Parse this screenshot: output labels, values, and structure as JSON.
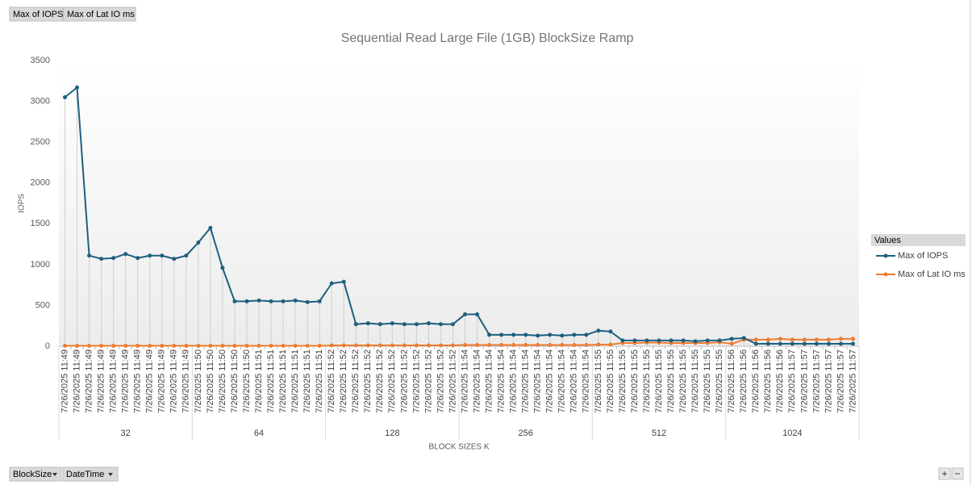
{
  "chart_data": {
    "type": "line",
    "title": "Sequential Read Large File (1GB) BlockSize Ramp",
    "y_axis_label": "IOPS",
    "x_axis_label": "BLOCK SIZES K",
    "value_buttons": [
      "Max of IOPS",
      "Max of Lat IO ms"
    ],
    "axis_buttons": [
      "BlockSize",
      "DateTime"
    ],
    "legend_title": "Values",
    "legend_position": "right",
    "drop_lines": true,
    "groups": [
      {
        "label": "32",
        "categories": [
          "7/26/2025 11:49",
          "7/26/2025 11:49",
          "7/26/2025 11:49",
          "7/26/2025 11:49",
          "7/26/2025 11:49",
          "7/26/2025 11:49",
          "7/26/2025 11:49",
          "7/26/2025 11:49",
          "7/26/2025 11:49",
          "7/26/2025 11:49",
          "7/26/2025 11:49"
        ]
      },
      {
        "label": "64",
        "categories": [
          "7/26/2025 11:50",
          "7/26/2025 11:50",
          "7/26/2025 11:50",
          "7/26/2025 11:50",
          "7/26/2025 11:50",
          "7/26/2025 11:51",
          "7/26/2025 11:51",
          "7/26/2025 11:51",
          "7/26/2025 11:51",
          "7/26/2025 11:51",
          "7/26/2025 11:51"
        ]
      },
      {
        "label": "128",
        "categories": [
          "7/26/2025 11:52",
          "7/26/2025 11:52",
          "7/26/2025 11:52",
          "7/26/2025 11:52",
          "7/26/2025 11:52",
          "7/26/2025 11:52",
          "7/26/2025 11:52",
          "7/26/2025 11:52",
          "7/26/2025 11:52",
          "7/26/2025 11:52",
          "7/26/2025 11:52"
        ]
      },
      {
        "label": "256",
        "categories": [
          "7/26/2025 11:54",
          "7/26/2025 11:54",
          "7/26/2025 11:54",
          "7/26/2025 11:54",
          "7/26/2025 11:54",
          "7/26/2025 11:54",
          "7/26/2025 11:54",
          "7/26/2025 11:54",
          "7/26/2025 11:54",
          "7/26/2025 11:54",
          "7/26/2025 11:54"
        ]
      },
      {
        "label": "512",
        "categories": [
          "7/26/2025 11:55",
          "7/26/2025 11:55",
          "7/26/2025 11:55",
          "7/26/2025 11:55",
          "7/26/2025 11:55",
          "7/26/2025 11:55",
          "7/26/2025 11:55",
          "7/26/2025 11:55",
          "7/26/2025 11:55",
          "7/26/2025 11:55",
          "7/26/2025 11:55"
        ]
      },
      {
        "label": "1024",
        "categories": [
          "7/26/2025 11:56",
          "7/26/2025 11:56",
          "7/26/2025 11:56",
          "7/26/2025 11:56",
          "7/26/2025 11:56",
          "7/26/2025 11:57",
          "7/26/2025 11:57",
          "7/26/2025 11:57",
          "7/26/2025 11:57",
          "7/26/2025 11:57",
          "7/26/2025 11:57"
        ]
      }
    ],
    "series": [
      {
        "name": "Max of IOPS",
        "color": "#1f5f7f",
        "values": [
          3050,
          3170,
          1110,
          1070,
          1080,
          1130,
          1080,
          1110,
          1110,
          1070,
          1110,
          1270,
          1450,
          960,
          550,
          550,
          560,
          550,
          550,
          560,
          540,
          550,
          770,
          790,
          270,
          280,
          270,
          280,
          270,
          270,
          280,
          270,
          270,
          390,
          390,
          140,
          140,
          140,
          140,
          130,
          140,
          130,
          140,
          140,
          190,
          180,
          70,
          70,
          70,
          70,
          70,
          70,
          60,
          70,
          70,
          90,
          100,
          30,
          30,
          30,
          30,
          30,
          30,
          30,
          30,
          30
        ]
      },
      {
        "name": "Max of Lat IO ms",
        "color": "#ed7d31",
        "values": [
          5,
          5,
          5,
          5,
          5,
          5,
          5,
          5,
          5,
          5,
          5,
          5,
          5,
          5,
          5,
          5,
          5,
          5,
          5,
          5,
          5,
          5,
          10,
          10,
          10,
          10,
          10,
          10,
          10,
          10,
          10,
          10,
          10,
          15,
          15,
          15,
          15,
          15,
          15,
          15,
          15,
          15,
          15,
          15,
          20,
          20,
          40,
          40,
          45,
          45,
          40,
          40,
          40,
          40,
          50,
          30,
          80,
          80,
          80,
          90,
          80,
          80,
          80,
          80,
          90,
          90
        ]
      }
    ],
    "ylim": [
      0,
      3500
    ],
    "yticks": [
      0,
      500,
      1000,
      1500,
      2000,
      2500,
      3000,
      3500
    ]
  }
}
